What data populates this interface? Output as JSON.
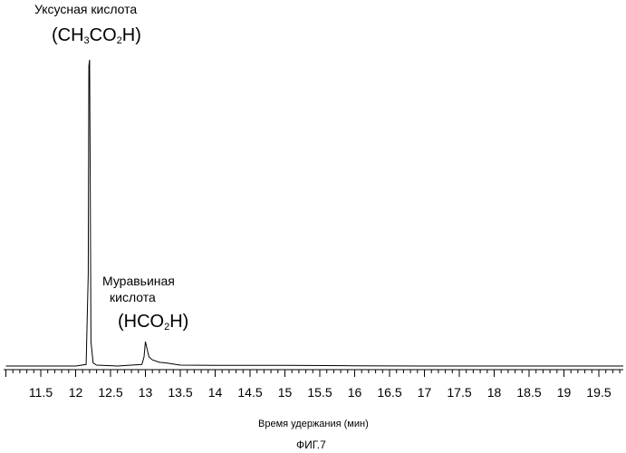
{
  "chart_data": {
    "type": "line",
    "xlim": [
      11.0,
      20.0
    ],
    "xticks_major": [
      11.5,
      12,
      12.5,
      13,
      13.5,
      14,
      14.5,
      15,
      15.5,
      16,
      16.5,
      17,
      17.5,
      18,
      18.5,
      19,
      19.5
    ],
    "xtick_labels": [
      "11.5",
      "12",
      "12.5",
      "13",
      "13.5",
      "14",
      "14.5",
      "15",
      "15.5",
      "16",
      "16.5",
      "17",
      "17.5",
      "18",
      "18.5",
      "19",
      "19.5"
    ],
    "xlabel": "Время удержания (мин)",
    "ylabel": "",
    "grid": false,
    "series": [
      {
        "x": [
          11.0,
          12.0,
          12.15,
          12.18,
          12.19,
          12.2,
          12.21,
          12.22,
          12.25,
          12.3,
          12.6,
          12.95,
          12.98,
          13.0,
          13.02,
          13.05,
          13.1,
          13.2,
          13.3,
          13.5,
          14.0,
          15.0,
          16.0,
          17.0,
          18.0,
          19.0,
          20.0
        ],
        "y": [
          0.0,
          0.0,
          0.005,
          0.3,
          0.98,
          1.0,
          0.55,
          0.08,
          0.01,
          0.003,
          0.0,
          0.005,
          0.03,
          0.08,
          0.06,
          0.03,
          0.02,
          0.012,
          0.01,
          0.003,
          0.002,
          0.002,
          0.001,
          0.0,
          0.0,
          0.0,
          0.0
        ]
      }
    ],
    "annotations": [
      {
        "name": "Уксусная кислота",
        "formula": "CH3CO2H",
        "x": 12.2
      },
      {
        "name": "Муравьиная кислота",
        "formula": "HCO2H",
        "x": 13.0
      }
    ]
  },
  "labels": {
    "acetic_name": "Уксусная кислота",
    "acetic_formula": {
      "open": "(CH",
      "sub1": "3",
      "mid": "CO",
      "sub2": "2",
      "close": "H)"
    },
    "formic_name_line1": "Муравьиная",
    "formic_name_line2": "кислота",
    "formic_formula": {
      "open": "(HCO",
      "sub1": "2",
      "close": "H)"
    },
    "figure_caption": "ФИГ.7"
  }
}
